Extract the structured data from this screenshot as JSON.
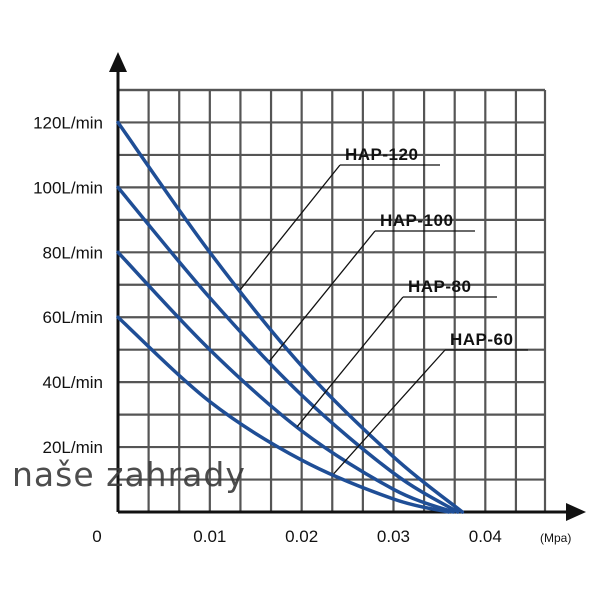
{
  "watermark": "naše zahrady",
  "chart_data": {
    "type": "line",
    "title": "",
    "xlabel": "",
    "ylabel": "",
    "x_unit": "(Mpa)",
    "x_ticks": [
      0,
      0.01,
      0.02,
      0.03,
      0.04
    ],
    "x_tick_labels": [
      "0",
      "0.01",
      "0.02",
      "0.03",
      "0.04"
    ],
    "y_ticks": [
      20,
      40,
      60,
      80,
      100,
      120
    ],
    "y_tick_labels": [
      "20L/min",
      "40L/min",
      "60L/min",
      "80L/min",
      "100L/min",
      "120L/min"
    ],
    "xlim": [
      0,
      0.0465
    ],
    "ylim": [
      0,
      130
    ],
    "grid": true,
    "colors": {
      "series": "#1f4e96",
      "grid": "#555555",
      "axis": "#111111"
    },
    "series": [
      {
        "name": "HAP-120",
        "x": [
          0,
          0.01,
          0.02,
          0.03,
          0.0375
        ],
        "y": [
          120,
          80,
          45,
          17,
          0
        ],
        "label_at_x": 0.0133
      },
      {
        "name": "HAP-100",
        "x": [
          0,
          0.01,
          0.02,
          0.03,
          0.037
        ],
        "y": [
          100,
          66,
          36,
          12,
          0
        ],
        "label_at_x": 0.0165
      },
      {
        "name": "HAP-80",
        "x": [
          0,
          0.01,
          0.02,
          0.03,
          0.0365
        ],
        "y": [
          80,
          50,
          25,
          7,
          0
        ],
        "label_at_x": 0.0195
      },
      {
        "name": "HAP-60",
        "x": [
          0,
          0.01,
          0.02,
          0.03,
          0.036
        ],
        "y": [
          60,
          34,
          16,
          4,
          0
        ],
        "label_at_x": 0.0235
      }
    ]
  }
}
